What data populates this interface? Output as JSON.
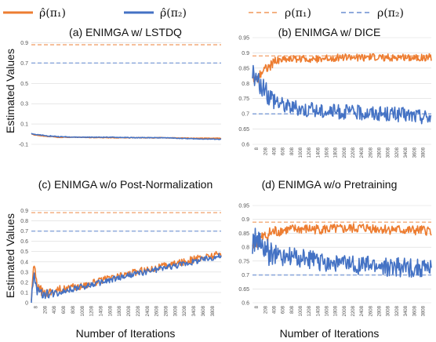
{
  "figure": {
    "legend": [
      {
        "label": "ρ̂(π₁)",
        "color": "#ed7d31",
        "dash": false
      },
      {
        "label": "ρ̂(π₂)",
        "color": "#4472c4",
        "dash": false
      },
      {
        "label": "ρ(π₁)",
        "color": "#f4b183",
        "dash": true
      },
      {
        "label": "ρ(π₂)",
        "color": "#8faadc",
        "dash": true
      }
    ],
    "ylabel": "Estimated Values",
    "xlabel": "Number of Iterations"
  },
  "chart_data": [
    {
      "type": "line",
      "title": "(a) ENIMGA w/ LSTDQ",
      "ylabel": "Estimated Values",
      "xlabel": "",
      "ylim": [
        -0.1,
        0.95
      ],
      "yticks": [
        "-0.1",
        "0.1",
        "0.3",
        "0.5",
        "0.7",
        "0.9"
      ],
      "ytick_values": [
        -0.1,
        0.1,
        0.3,
        0.5,
        0.7,
        0.9
      ],
      "xtick_labels": [],
      "xlim": [
        0,
        4000
      ],
      "reference_lines": [
        {
          "name": "ρ(π₁)",
          "value": 0.88
        },
        {
          "name": "ρ(π₂)",
          "value": 0.7
        }
      ],
      "series": [
        {
          "name": "ρ̂(π₁)",
          "x": [
            0,
            100,
            300,
            600,
            1000,
            1600,
            2200,
            2800,
            3400,
            4000
          ],
          "y": [
            0.0,
            -0.01,
            -0.02,
            -0.03,
            -0.03,
            -0.035,
            -0.035,
            -0.035,
            -0.04,
            -0.04
          ]
        },
        {
          "name": "ρ̂(π₂)",
          "x": [
            0,
            100,
            300,
            600,
            1000,
            1600,
            2200,
            2800,
            3400,
            4000
          ],
          "y": [
            0.01,
            -0.005,
            -0.015,
            -0.025,
            -0.03,
            -0.03,
            -0.035,
            -0.035,
            -0.045,
            -0.05
          ]
        }
      ]
    },
    {
      "type": "line",
      "title": "(b) ENIMGA w/ DICE",
      "ylabel": "",
      "xlabel": "",
      "ylim": [
        0.6,
        0.95
      ],
      "yticks": [
        "0.6",
        "0.65",
        "0.7",
        "0.75",
        "0.8",
        "0.85",
        "0.9",
        "0.95"
      ],
      "ytick_values": [
        0.6,
        0.65,
        0.7,
        0.75,
        0.8,
        0.85,
        0.9,
        0.95
      ],
      "xtick_labels": [
        "8",
        "208",
        "408",
        "608",
        "808",
        "1008",
        "1208",
        "1408",
        "1608",
        "1808",
        "2008",
        "2208",
        "2408",
        "2608",
        "2808",
        "3008",
        "3208",
        "3408",
        "3608",
        "3808"
      ],
      "xlim": [
        0,
        4000
      ],
      "reference_lines": [
        {
          "name": "ρ(π₁)",
          "value": 0.89
        },
        {
          "name": "ρ(π₂)",
          "value": 0.7
        }
      ],
      "series": [
        {
          "name": "ρ̂(π₁)",
          "x": [
            0,
            100,
            200,
            300,
            400,
            500,
            700,
            1000,
            1500,
            2000,
            2500,
            3000,
            3500,
            4000
          ],
          "y": [
            0.82,
            0.81,
            0.84,
            0.85,
            0.86,
            0.87,
            0.88,
            0.88,
            0.88,
            0.885,
            0.885,
            0.885,
            0.885,
            0.885
          ]
        },
        {
          "name": "ρ̂(π₂)",
          "x": [
            0,
            100,
            200,
            300,
            400,
            500,
            700,
            1000,
            1500,
            2000,
            2500,
            3000,
            3500,
            4000
          ],
          "y": [
            0.83,
            0.81,
            0.79,
            0.77,
            0.76,
            0.75,
            0.73,
            0.72,
            0.71,
            0.705,
            0.705,
            0.7,
            0.695,
            0.69
          ]
        }
      ]
    },
    {
      "type": "line",
      "title": "(c) ENIMGA w/o Post-Normalization",
      "ylabel": "Estimated Values",
      "xlabel": "Number of Iterations",
      "ylim": [
        0,
        0.95
      ],
      "yticks": [
        "0",
        "0.1",
        "0.2",
        "0.3",
        "0.4",
        "0.5",
        "0.6",
        "0.7",
        "0.8",
        "0.9"
      ],
      "ytick_values": [
        0,
        0.1,
        0.2,
        0.3,
        0.4,
        0.5,
        0.6,
        0.7,
        0.8,
        0.9
      ],
      "xtick_labels": [
        "8",
        "208",
        "408",
        "608",
        "808",
        "1008",
        "1208",
        "1408",
        "1608",
        "1808",
        "2008",
        "2208",
        "2408",
        "2608",
        "2808",
        "3008",
        "3208",
        "3408",
        "3608",
        "3808"
      ],
      "xlim": [
        0,
        4000
      ],
      "reference_lines": [
        {
          "name": "ρ(π₁)",
          "value": 0.88
        },
        {
          "name": "ρ(π₂)",
          "value": 0.7
        }
      ],
      "series": [
        {
          "name": "ρ̂(π₁)",
          "x": [
            0,
            50,
            120,
            250,
            500,
            1000,
            1500,
            2000,
            2500,
            3000,
            3500,
            4000
          ],
          "y": [
            0.02,
            0.38,
            0.15,
            0.1,
            0.12,
            0.16,
            0.22,
            0.28,
            0.33,
            0.38,
            0.43,
            0.48
          ]
        },
        {
          "name": "ρ̂(π₂)",
          "x": [
            0,
            50,
            120,
            250,
            500,
            1000,
            1500,
            2000,
            2500,
            3000,
            3500,
            4000
          ],
          "y": [
            0.02,
            0.3,
            0.12,
            0.08,
            0.1,
            0.15,
            0.2,
            0.26,
            0.31,
            0.36,
            0.41,
            0.46
          ]
        }
      ]
    },
    {
      "type": "line",
      "title": "(d) ENIMGA w/o Pretraining",
      "ylabel": "",
      "xlabel": "Number of Iterations",
      "ylim": [
        0.6,
        0.95
      ],
      "yticks": [
        "0.6",
        "0.65",
        "0.7",
        "0.75",
        "0.8",
        "0.85",
        "0.9",
        "0.95"
      ],
      "ytick_values": [
        0.6,
        0.65,
        0.7,
        0.75,
        0.8,
        0.85,
        0.9,
        0.95
      ],
      "xtick_labels": [
        "8",
        "208",
        "408",
        "608",
        "808",
        "1008",
        "1208",
        "1408",
        "1608",
        "1808",
        "2008",
        "2208",
        "2408",
        "2608",
        "2808",
        "3008",
        "3208",
        "3408",
        "3608",
        "3808"
      ],
      "xlim": [
        0,
        4000
      ],
      "reference_lines": [
        {
          "name": "ρ(π₁)",
          "value": 0.89
        },
        {
          "name": "ρ(π₂)",
          "value": 0.7
        }
      ],
      "series": [
        {
          "name": "ρ̂(π₁)",
          "x": [
            0,
            100,
            200,
            300,
            400,
            600,
            1000,
            1500,
            2000,
            2500,
            3000,
            3500,
            4000
          ],
          "y": [
            0.81,
            0.82,
            0.83,
            0.84,
            0.85,
            0.86,
            0.865,
            0.865,
            0.865,
            0.87,
            0.865,
            0.86,
            0.86
          ]
        },
        {
          "name": "ρ̂(π₂)",
          "x": [
            0,
            100,
            200,
            300,
            400,
            600,
            1000,
            1500,
            2000,
            2500,
            3000,
            3500,
            4000
          ],
          "y": [
            0.82,
            0.82,
            0.8,
            0.79,
            0.78,
            0.77,
            0.76,
            0.75,
            0.74,
            0.735,
            0.73,
            0.725,
            0.725
          ]
        }
      ]
    }
  ]
}
